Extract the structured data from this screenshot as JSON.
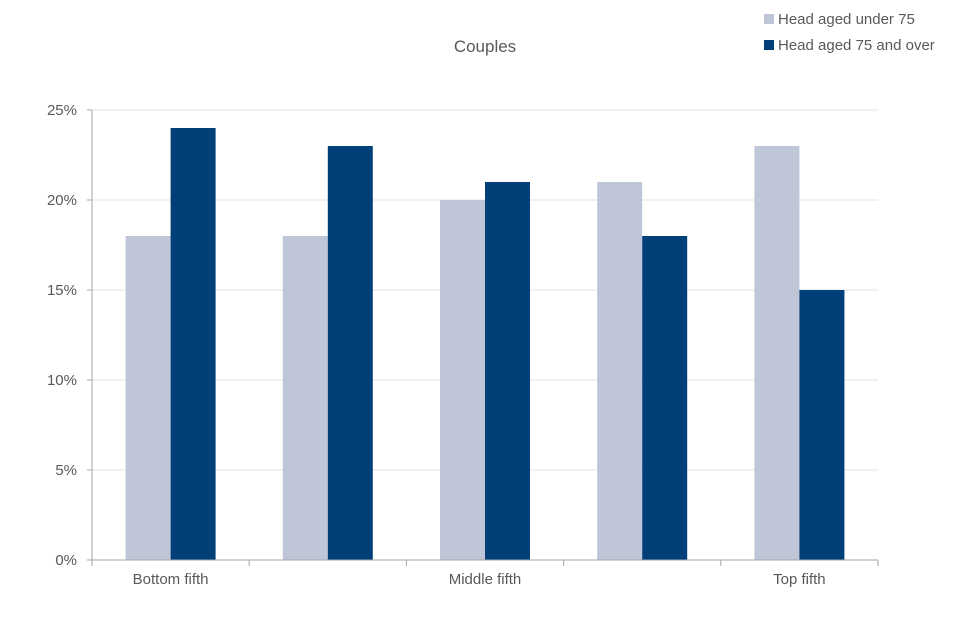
{
  "chart_data": {
    "type": "bar",
    "title": "Couples",
    "categories": [
      "Bottom fifth",
      "",
      "Middle fifth",
      "",
      "Top fifth"
    ],
    "series": [
      {
        "name": "Head aged under 75",
        "color": "#bec6d8",
        "values": [
          18,
          18,
          20,
          21,
          23
        ]
      },
      {
        "name": "Head aged 75 and over",
        "color": "#003f78",
        "values": [
          24,
          23,
          21,
          18,
          15
        ]
      }
    ],
    "ylim": [
      0,
      25
    ],
    "yticks": [
      "0%",
      "5%",
      "10%",
      "15%",
      "20%",
      "25%"
    ],
    "ytick_values": [
      0,
      5,
      10,
      15,
      20,
      25
    ],
    "grid": true,
    "legend_position": "top-right",
    "xlabel": "",
    "ylabel": ""
  }
}
